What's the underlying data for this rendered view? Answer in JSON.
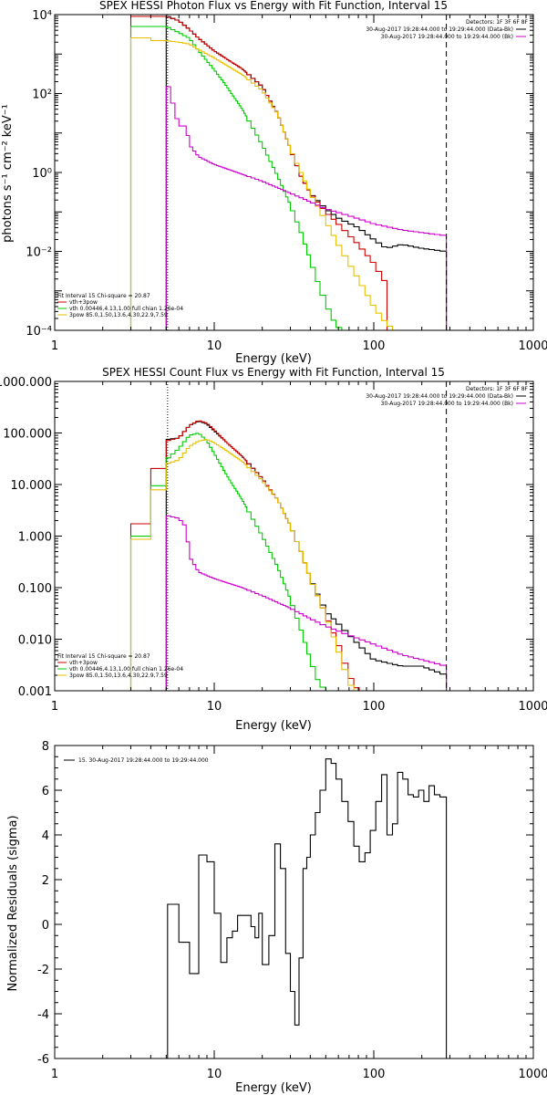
{
  "chart_data": [
    {
      "type": "line",
      "title": "SPEX HESSI Photon Flux vs Energy with Fit Function, Interval 15",
      "xlabel": "Energy (keV)",
      "ylabel": "photons s⁻¹ cm⁻² keV⁻¹",
      "xscale": "log",
      "yscale": "log",
      "xlim": [
        1,
        1000
      ],
      "ylim": [
        0.0001,
        10000
      ],
      "xtick_labels": [
        "1",
        "10",
        "100",
        "1000"
      ],
      "ytick_labels": [
        "10⁴",
        "10²",
        "10⁰",
        "10⁻²",
        "10⁻⁴"
      ],
      "legend_top": {
        "heading": "Detectors: 1F 3F 6F 8F",
        "entries": [
          {
            "label": "30-Aug-2017 19:28:44.000 to 19:29:44.000 (Data-Bk)",
            "color": "#000000"
          },
          {
            "label": "30-Aug-2017 19:28:44.000 to 19:29:44.000 (Bk)",
            "color": "#cc00cc"
          }
        ]
      },
      "legend_bottom": {
        "heading": "Fit Interval 15   Chi-square = 20.87",
        "entries": [
          {
            "label": "vth+3pow",
            "color": "#cc0000"
          },
          {
            "label": "vth 0.00446,4.13,1.00  full chian 1.26e-04",
            "color": "#00cc00"
          },
          {
            "label": "3pow 85.0,1.50,13.6,4.30,22.9,7.59",
            "color": "#e6c000"
          }
        ]
      },
      "vlines": [
        {
          "x": 5.1,
          "style": "dotted"
        },
        {
          "x": 285,
          "style": "dashed"
        }
      ],
      "edges": [
        3,
        4,
        5,
        5.33,
        5.67,
        6,
        6.33,
        6.67,
        7,
        7.33,
        7.67,
        8,
        8.33,
        8.67,
        9,
        9.33,
        9.67,
        10,
        10.33,
        10.67,
        11,
        11.33,
        11.67,
        12,
        12.33,
        12.67,
        13,
        13.33,
        13.67,
        14,
        14.33,
        14.67,
        15,
        15.33,
        15.67,
        16,
        17,
        18,
        19,
        20,
        21,
        22,
        23,
        24,
        25,
        26,
        27,
        28,
        29,
        30,
        32,
        34,
        36,
        38,
        40,
        43,
        46,
        50,
        54,
        58,
        63,
        69,
        75,
        81,
        88,
        95,
        103,
        112,
        121,
        131,
        141,
        152,
        164,
        177,
        191,
        206,
        222,
        240,
        260,
        285
      ],
      "series": [
        {
          "name": "Data-Bk",
          "color": "#000000",
          "anchors_x": [
            5.1,
            6,
            7,
            8,
            10,
            15,
            20,
            25,
            30,
            35,
            40,
            50,
            60,
            80,
            100,
            120,
            150,
            200,
            280
          ],
          "anchors_y": [
            9000,
            7000,
            4200,
            2500,
            1200,
            420,
            150,
            30,
            4,
            0.8,
            0.3,
            0.12,
            0.07,
            0.04,
            0.02,
            0.012,
            0.015,
            0.012,
            0.01
          ]
        },
        {
          "name": "vth+3pow",
          "color": "#cc0000",
          "anchors_x": [
            3,
            4,
            5,
            6,
            7,
            8,
            10,
            15,
            20,
            25,
            30,
            35,
            40,
            50,
            60,
            80,
            100,
            120
          ],
          "anchors_y": [
            9000,
            9000,
            9000,
            7000,
            4200,
            2500,
            1200,
            420,
            150,
            30,
            4,
            0.8,
            0.3,
            0.1,
            0.05,
            0.015,
            0.005,
            0.0015
          ]
        },
        {
          "name": "vth",
          "color": "#00cc00",
          "anchors_x": [
            3,
            4,
            5,
            6,
            7,
            8,
            10,
            12,
            15,
            20,
            25,
            30,
            35,
            40,
            45,
            50,
            55,
            60,
            65
          ],
          "anchors_y": [
            5000,
            5000,
            5000,
            3500,
            2500,
            1200,
            400,
            150,
            40,
            5,
            0.8,
            0.15,
            0.03,
            0.006,
            0.0015,
            0.0005,
            0.0002,
            0.00012,
            0.0001
          ]
        },
        {
          "name": "3pow",
          "color": "#e6c000",
          "anchors_x": [
            3,
            4,
            5,
            6,
            7,
            8,
            10,
            15,
            20,
            25,
            30,
            40,
            50,
            60,
            80,
            100,
            120,
            135
          ],
          "anchors_y": [
            3000,
            2200,
            2200,
            2000,
            1800,
            1300,
            800,
            300,
            120,
            30,
            4,
            0.3,
            0.06,
            0.015,
            0.002,
            0.0004,
            0.00015,
            0.0001
          ]
        },
        {
          "name": "Bk",
          "color": "#cc00cc",
          "anchors_x": [
            5.1,
            6,
            6.67,
            7,
            8,
            10,
            15,
            20,
            30,
            40,
            50,
            70,
            100,
            150,
            200,
            285
          ],
          "anchors_y": [
            180,
            15,
            15,
            5,
            2.5,
            1.6,
            0.9,
            0.6,
            0.3,
            0.18,
            0.12,
            0.08,
            0.05,
            0.035,
            0.03,
            0.025
          ]
        }
      ]
    },
    {
      "type": "line",
      "title": "SPEX HESSI Count Flux vs Energy with Fit Function, Interval 15",
      "xlabel": "Energy (keV)",
      "ylabel": "",
      "xscale": "log",
      "yscale": "log",
      "xlim": [
        1,
        1000
      ],
      "ylim": [
        0.001,
        1000
      ],
      "xtick_labels": [
        "1",
        "10",
        "100",
        "1000"
      ],
      "ytick_labels": [
        "1000.000",
        "100.000",
        "10.000",
        "1.000",
        "0.100",
        "0.010",
        "0.001"
      ],
      "legend_top": {
        "heading": "Detectors: 1F 3F 6F 8F",
        "entries": [
          {
            "label": "30-Aug-2017 19:28:44.000 to 19:29:44.000 (Data-Bk)",
            "color": "#000000"
          },
          {
            "label": "30-Aug-2017 19:28:44.000 to 19:29:44.000 (Bk)",
            "color": "#cc00cc"
          }
        ]
      },
      "legend_bottom": {
        "heading": "Fit Interval 15   Chi-square = 20.87",
        "entries": [
          {
            "label": "vth+3pow",
            "color": "#cc0000"
          },
          {
            "label": "vth 0.00446,4.13,1.00  full chian 1.26e-04",
            "color": "#00cc00"
          },
          {
            "label": "3pow 85.0,1.50,13.6,4.30,22.9,7.59",
            "color": "#e6c000"
          }
        ]
      },
      "vlines": [
        {
          "x": 5.1,
          "style": "dotted"
        },
        {
          "x": 285,
          "style": "dashed"
        }
      ],
      "edges": [
        3,
        4,
        5,
        5.33,
        5.67,
        6,
        6.33,
        6.67,
        7,
        7.33,
        7.67,
        8,
        8.33,
        8.67,
        9,
        9.33,
        9.67,
        10,
        10.33,
        10.67,
        11,
        11.33,
        11.67,
        12,
        12.33,
        12.67,
        13,
        13.33,
        13.67,
        14,
        14.33,
        14.67,
        15,
        15.33,
        15.67,
        16,
        17,
        18,
        19,
        20,
        21,
        22,
        23,
        24,
        25,
        26,
        27,
        28,
        29,
        30,
        32,
        34,
        36,
        38,
        40,
        43,
        46,
        50,
        54,
        58,
        63,
        69,
        75,
        81,
        88,
        95,
        103,
        112,
        121,
        131,
        141,
        152,
        164,
        177,
        191,
        206,
        222,
        240,
        260,
        285
      ],
      "series": [
        {
          "name": "Data-Bk",
          "color": "#000000",
          "anchors_x": [
            5.1,
            6,
            7,
            8,
            9,
            10,
            12,
            15,
            20,
            25,
            30,
            35,
            40,
            50,
            60,
            80,
            100,
            150,
            200,
            285
          ],
          "anchors_y": [
            75,
            80,
            140,
            170,
            150,
            110,
            65,
            35,
            13,
            5,
            1.6,
            0.5,
            0.15,
            0.035,
            0.02,
            0.008,
            0.004,
            0.003,
            0.003,
            0.002
          ]
        },
        {
          "name": "vth+3pow",
          "color": "#cc0000",
          "anchors_x": [
            3,
            4,
            5,
            6,
            7,
            8,
            9,
            10,
            12,
            15,
            20,
            25,
            30,
            35,
            40,
            50,
            60,
            70,
            80
          ],
          "anchors_y": [
            0.5,
            6,
            70,
            80,
            140,
            175,
            155,
            115,
            65,
            35,
            13,
            5,
            1.6,
            0.5,
            0.15,
            0.03,
            0.008,
            0.002,
            0.001
          ]
        },
        {
          "name": "vth",
          "color": "#00cc00",
          "anchors_x": [
            3,
            4,
            5,
            6,
            7,
            8,
            9,
            10,
            12,
            15,
            20,
            25,
            30,
            35,
            40,
            45,
            50
          ],
          "anchors_y": [
            0.33,
            3,
            30,
            50,
            90,
            100,
            70,
            40,
            15,
            5,
            1,
            0.25,
            0.06,
            0.015,
            0.004,
            0.0015,
            0.001
          ]
        },
        {
          "name": "3pow",
          "color": "#e6c000",
          "anchors_x": [
            3,
            4,
            5,
            6,
            7,
            8,
            9,
            10,
            12,
            15,
            20,
            25,
            30,
            35,
            40,
            50,
            60,
            70,
            75
          ],
          "anchors_y": [
            0.3,
            2.5,
            25,
            30,
            55,
            70,
            75,
            65,
            45,
            28,
            12,
            5,
            1.6,
            0.5,
            0.15,
            0.03,
            0.006,
            0.0015,
            0.001
          ]
        },
        {
          "name": "Bk",
          "color": "#cc00cc",
          "anchors_x": [
            5.1,
            6,
            6.67,
            7,
            8,
            10,
            15,
            20,
            30,
            40,
            50,
            70,
            100,
            150,
            200,
            285
          ],
          "anchors_y": [
            2.5,
            2.2,
            1.5,
            0.4,
            0.2,
            0.15,
            0.1,
            0.07,
            0.04,
            0.025,
            0.018,
            0.012,
            0.008,
            0.005,
            0.004,
            0.003
          ]
        }
      ]
    },
    {
      "type": "line",
      "title": "",
      "xlabel": "Energy (keV)",
      "ylabel": "Normalized Residuals (sigma)",
      "xscale": "log",
      "yscale": "linear",
      "xlim": [
        1,
        1000
      ],
      "ylim": [
        -6,
        8
      ],
      "xtick_labels": [
        "1",
        "10",
        "100",
        "1000"
      ],
      "yticks": [
        -6,
        -4,
        -2,
        0,
        2,
        4,
        6,
        8
      ],
      "legend": {
        "entries": [
          {
            "label": "15. 30-Aug-2017 19:28:44.000 to 19:29:44.000",
            "color": "#000000"
          }
        ]
      },
      "edges": [
        5.1,
        6,
        7,
        8,
        9,
        10,
        11,
        12,
        13,
        14,
        15,
        16,
        17,
        18,
        19,
        20,
        22,
        24,
        26,
        28,
        30,
        32,
        34,
        36,
        38,
        40,
        43,
        46,
        50,
        54,
        58,
        63,
        69,
        75,
        81,
        88,
        95,
        103,
        112,
        121,
        131,
        141,
        152,
        164,
        177,
        191,
        206,
        222,
        240,
        260,
        285
      ],
      "series": [
        {
          "name": "15. 30-Aug-2017 19:28:44.000 to 19:29:44.000",
          "color": "#000000",
          "values": [
            0.9,
            -0.8,
            -2.2,
            3.1,
            2.8,
            0.5,
            -1.7,
            -0.6,
            -0.3,
            0.4,
            0.4,
            0.4,
            -0.1,
            -0.6,
            0.5,
            -1.8,
            -0.5,
            3.6,
            2.5,
            -1.3,
            -3.0,
            -4.5,
            -1.5,
            2.5,
            3.0,
            4.0,
            5.0,
            6.0,
            7.4,
            7.2,
            6.5,
            5.5,
            4.6,
            3.5,
            2.8,
            3.2,
            4.2,
            5.5,
            6.7,
            4.0,
            4.5,
            6.8,
            6.5,
            5.8,
            5.7,
            6.0,
            5.5,
            6.2,
            5.8,
            5.7
          ]
        }
      ]
    }
  ]
}
